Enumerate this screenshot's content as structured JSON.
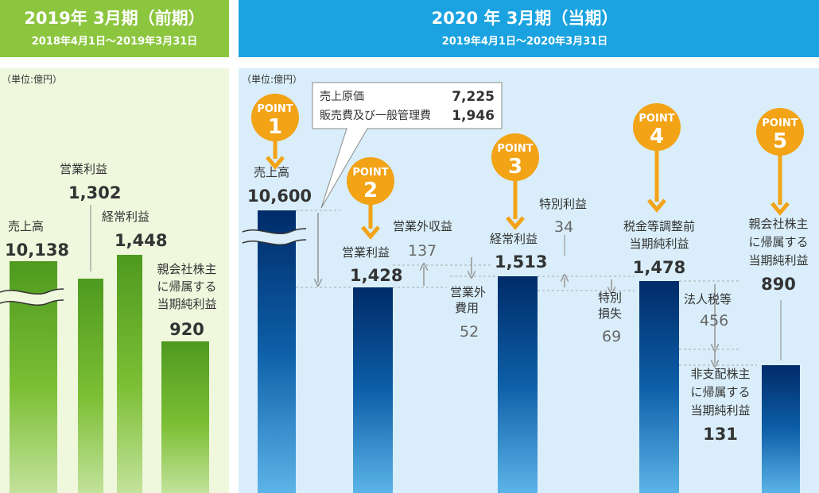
{
  "unit": "（単位:億円）",
  "colors": {
    "prev_header": "#8cc63f",
    "prev_panel": "#eff7dd",
    "curr_header": "#1aa3e0",
    "curr_panel": "#d9eefa",
    "arrow_orange": "#f2a316",
    "gray_arrow": "#999999"
  },
  "prev": {
    "title": "2019年 3月期（前期）",
    "period": "2018年4月1日～2019年3月31日",
    "labels": {
      "sales": "売上高",
      "operating": "営業利益",
      "ordinary": "経常利益",
      "net": [
        "親会社株主",
        "に帰属する",
        "当期純利益"
      ]
    }
  },
  "curr": {
    "title": "2020 年 3月期（当期）",
    "period": "2019年4月1日～2020年3月31日",
    "point_word": "POINT",
    "callout": {
      "cost_label": "売上原価",
      "cost_value": "7,225",
      "sga_label": "販売費及び一般管理費",
      "sga_value": "1,946"
    },
    "labels": {
      "sales": "売上高",
      "operating": "営業利益",
      "ordinary": "経常利益",
      "pretax": [
        "税金等調整前",
        "当期純利益"
      ],
      "net": [
        "親会社株主",
        "に帰属する",
        "当期純利益"
      ]
    },
    "steps": {
      "non_op_income_label": "営業外収益",
      "non_op_income_value": "137",
      "non_op_expense_label": [
        "営業外",
        "費用"
      ],
      "non_op_expense_value": "52",
      "extra_gain_label": "特別利益",
      "extra_gain_value": "34",
      "extra_loss_label": [
        "特別",
        "損失"
      ],
      "extra_loss_value": "69",
      "tax_label": "法人税等",
      "tax_value": "456",
      "nci_label": [
        "非支配株主",
        "に帰属する",
        "当期純利益"
      ],
      "nci_value": "131"
    }
  },
  "chart_data": [
    {
      "type": "bar",
      "title": "2019年 3月期（前期）",
      "subtitle": "2018年4月1日～2019年3月31日",
      "unit": "億円",
      "categories": [
        "売上高",
        "営業利益",
        "経常利益",
        "親会社株主に帰属する当期純利益"
      ],
      "values": [
        10138,
        1302,
        1448,
        920
      ],
      "value_labels": [
        "10,138",
        "1,302",
        "1,448",
        "920"
      ],
      "axis_break": "売上高"
    },
    {
      "type": "bar",
      "title": "2020 年 3月期（当期）",
      "subtitle": "2019年4月1日～2020年3月31日",
      "unit": "億円",
      "categories": [
        "売上高",
        "営業利益",
        "経常利益",
        "税金等調整前当期純利益",
        "親会社株主に帰属する当期純利益"
      ],
      "values": [
        10600,
        1428,
        1513,
        1478,
        890
      ],
      "value_labels": [
        "10,600",
        "1,428",
        "1,513",
        "1,478",
        "890"
      ],
      "points": [
        "1",
        "2",
        "3",
        "4",
        "5"
      ],
      "axis_break": "売上高",
      "annotations": [
        {
          "label": "売上原価",
          "value": 7225
        },
        {
          "label": "販売費及び一般管理費",
          "value": 1946
        },
        {
          "label": "営業外収益",
          "value": 137
        },
        {
          "label": "営業外費用",
          "value": 52
        },
        {
          "label": "特別利益",
          "value": 34
        },
        {
          "label": "特別損失",
          "value": 69
        },
        {
          "label": "法人税等",
          "value": 456
        },
        {
          "label": "非支配株主に帰属する当期純利益",
          "value": 131
        }
      ]
    }
  ]
}
